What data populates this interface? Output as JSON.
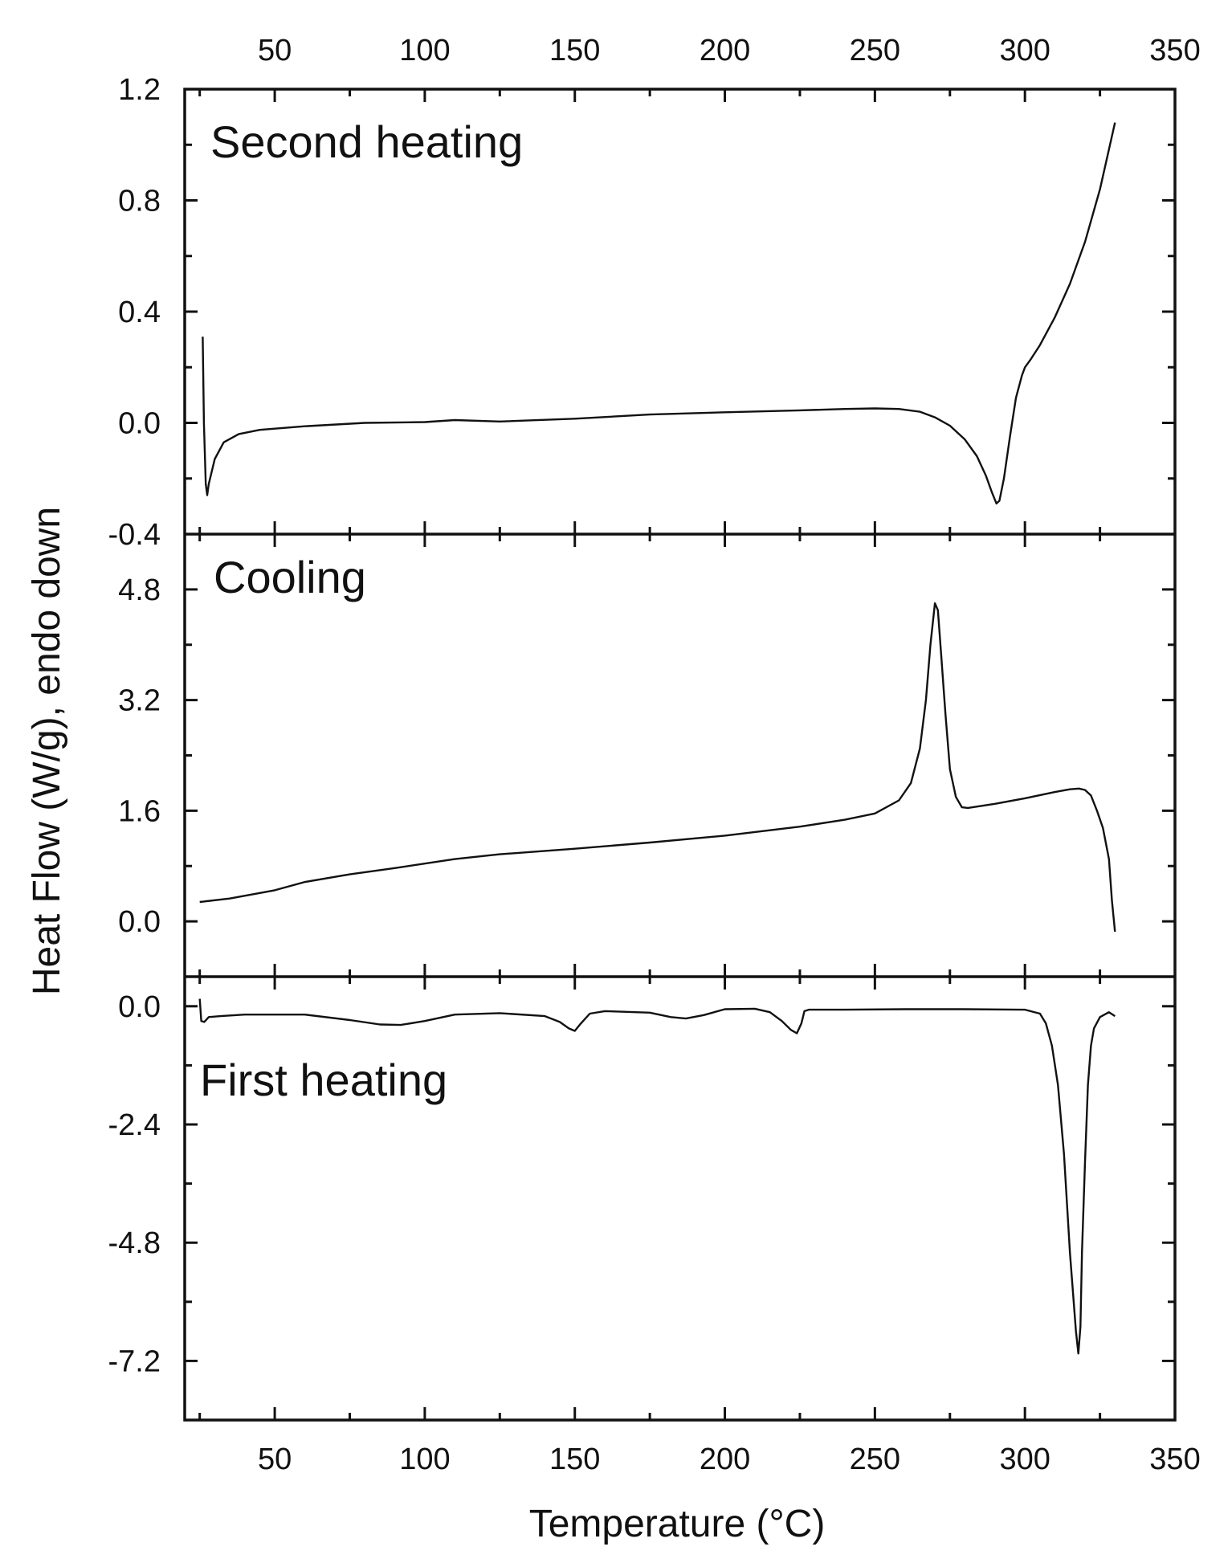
{
  "chart_data": {
    "type": "line",
    "xlabel": "Temperature (°C)",
    "ylabel": "Heat Flow (W/g), endo down",
    "xlim": [
      20,
      350
    ],
    "xticks": [
      50,
      100,
      150,
      200,
      250,
      300,
      350
    ],
    "colors": {
      "line": "#111111",
      "frame": "#111111"
    },
    "panels": [
      {
        "label": "Second heating",
        "ylim": [
          -0.4,
          1.2
        ],
        "yticks": [
          {
            "v": -0.4,
            "t": "-0.4"
          },
          {
            "v": 0.0,
            "t": "0.0"
          },
          {
            "v": 0.4,
            "t": "0.4"
          },
          {
            "v": 0.8,
            "t": "0.8"
          },
          {
            "v": 1.2,
            "t": "1.2"
          }
        ],
        "series": [
          {
            "x": [
              26,
              26.4,
              27,
              27.5,
              28,
              30,
              33,
              38,
              45,
              60,
              80,
              100,
              110,
              125,
              150,
              175,
              200,
              225,
              240,
              250,
              258,
              265,
              270,
              275,
              280,
              284,
              287,
              289,
              290.5,
              291.5,
              293,
              295,
              297,
              299,
              300,
              302,
              305,
              310,
              315,
              320,
              325,
              330
            ],
            "y": [
              0.31,
              0.0,
              -0.22,
              -0.26,
              -0.22,
              -0.13,
              -0.07,
              -0.04,
              -0.025,
              -0.012,
              0.0,
              0.003,
              0.01,
              0.005,
              0.015,
              0.03,
              0.038,
              0.045,
              0.05,
              0.052,
              0.05,
              0.04,
              0.02,
              -0.01,
              -0.06,
              -0.12,
              -0.19,
              -0.25,
              -0.29,
              -0.28,
              -0.2,
              -0.05,
              0.09,
              0.17,
              0.2,
              0.23,
              0.28,
              0.38,
              0.5,
              0.65,
              0.84,
              1.08
            ]
          }
        ]
      },
      {
        "label": "Cooling",
        "ylim": [
          -0.8,
          5.6
        ],
        "yticks": [
          {
            "v": 0.0,
            "t": "0.0"
          },
          {
            "v": 1.6,
            "t": "1.6"
          },
          {
            "v": 3.2,
            "t": "3.2"
          },
          {
            "v": 4.8,
            "t": "4.8"
          }
        ],
        "series": [
          {
            "x": [
              25,
              35,
              50,
              60,
              75,
              90,
              110,
              125,
              150,
              175,
              200,
              225,
              240,
              250,
              258,
              262,
              265,
              267,
              268.5,
              270,
              271,
              272,
              273.5,
              275,
              277,
              279,
              281,
              290,
              300,
              310,
              315,
              318,
              320,
              322,
              324,
              326,
              328,
              329,
              330
            ],
            "y": [
              0.28,
              0.33,
              0.45,
              0.57,
              0.68,
              0.77,
              0.9,
              0.97,
              1.05,
              1.14,
              1.24,
              1.37,
              1.47,
              1.56,
              1.75,
              2.0,
              2.5,
              3.2,
              4.0,
              4.6,
              4.5,
              3.9,
              3.0,
              2.2,
              1.8,
              1.65,
              1.64,
              1.7,
              1.78,
              1.87,
              1.91,
              1.92,
              1.9,
              1.82,
              1.6,
              1.35,
              0.9,
              0.3,
              -0.15
            ]
          }
        ]
      },
      {
        "label": "First heating",
        "ylim": [
          -8.4,
          0.6
        ],
        "yticks": [
          {
            "v": -7.2,
            "t": "-7.2"
          },
          {
            "v": -4.8,
            "t": "-4.8"
          },
          {
            "v": -2.4,
            "t": "-2.4"
          },
          {
            "v": 0.0,
            "t": "0.0"
          }
        ],
        "series": [
          {
            "x": [
              25,
              25.5,
              26.5,
              28,
              32,
              40,
              60,
              75,
              85,
              92,
              100,
              110,
              125,
              140,
              145,
              148,
              150,
              152,
              155,
              160,
              175,
              182,
              187,
              193,
              200,
              210,
              215,
              219,
              222,
              224,
              225.5,
              226.5,
              228,
              240,
              260,
              280,
              300,
              305,
              307,
              309,
              311,
              313,
              315,
              317,
              317.8,
              318.5,
              319,
              320,
              321,
              322,
              323,
              325,
              328,
              330
            ],
            "y": [
              0.15,
              -0.3,
              -0.32,
              -0.22,
              -0.2,
              -0.17,
              -0.17,
              -0.28,
              -0.37,
              -0.38,
              -0.3,
              -0.17,
              -0.14,
              -0.2,
              -0.32,
              -0.45,
              -0.5,
              -0.35,
              -0.15,
              -0.1,
              -0.13,
              -0.22,
              -0.25,
              -0.18,
              -0.06,
              -0.05,
              -0.12,
              -0.3,
              -0.48,
              -0.55,
              -0.35,
              -0.1,
              -0.07,
              -0.07,
              -0.06,
              -0.06,
              -0.07,
              -0.15,
              -0.35,
              -0.8,
              -1.6,
              -3.0,
              -5.0,
              -6.6,
              -7.05,
              -6.5,
              -5.0,
              -3.2,
              -1.6,
              -0.8,
              -0.45,
              -0.22,
              -0.12,
              -0.2
            ]
          }
        ]
      }
    ]
  }
}
